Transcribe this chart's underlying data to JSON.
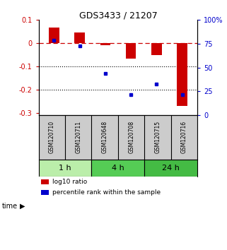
{
  "title": "GDS3433 / 21207",
  "samples": [
    "GSM120710",
    "GSM120711",
    "GSM120648",
    "GSM120708",
    "GSM120715",
    "GSM120716"
  ],
  "log10_ratio": [
    0.068,
    0.046,
    -0.01,
    -0.065,
    -0.05,
    -0.27
  ],
  "percentile_rank": [
    79,
    73,
    44,
    21.5,
    33,
    21.5
  ],
  "bar_color": "#cc0000",
  "dot_color": "#0000cc",
  "ylim_left": [
    -0.31,
    0.1
  ],
  "ylim_right": [
    0,
    100
  ],
  "yticks_left": [
    0.1,
    0.0,
    -0.1,
    -0.2,
    -0.3
  ],
  "yticks_right": [
    100,
    75,
    50,
    25,
    0
  ],
  "groups": [
    {
      "label": "1 h",
      "start": 0,
      "end": 1,
      "color": "#bbeeaa"
    },
    {
      "label": "4 h",
      "start": 2,
      "end": 3,
      "color": "#55cc55"
    },
    {
      "label": "24 h",
      "start": 4,
      "end": 5,
      "color": "#44bb44"
    }
  ],
  "time_label": "time",
  "legend_red": "log10 ratio",
  "legend_blue": "percentile rank within the sample",
  "dashed_line_color": "#cc0000",
  "dotted_line_color": "#000000",
  "bar_width": 0.4,
  "bg_label": "#cccccc"
}
